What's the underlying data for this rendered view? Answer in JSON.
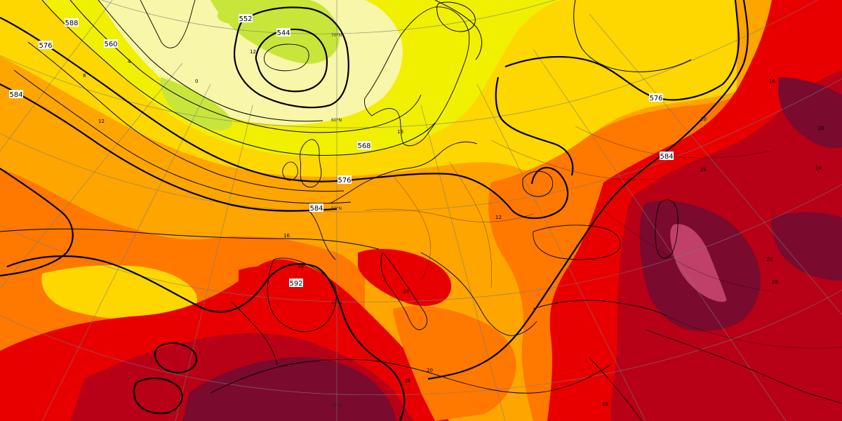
{
  "map": {
    "fill_palette": {
      "very_cold": "#f8f6a8",
      "cold": "#c8e63a",
      "cool": "#f0f000",
      "mild": "#ffd700",
      "warm": "#ffa500",
      "hot": "#ff7800",
      "very_hot": "#e80000",
      "extreme": "#b80016",
      "extreme2": "#7a0a2e",
      "extreme3": "#c0406a"
    },
    "contour_color": "#000000",
    "coast_color": "#000000",
    "geopotential_labels": [
      "588",
      "576",
      "584",
      "560",
      "552",
      "544",
      "568",
      "576",
      "584",
      "576",
      "584",
      "592"
    ],
    "temperature_labels": [
      "8",
      "4",
      "0",
      "12",
      "16",
      "20",
      "24",
      "28",
      "20",
      "16",
      "12",
      "20",
      "28",
      "16",
      "20",
      "24",
      "28",
      "28",
      "20",
      "12"
    ],
    "latitude_labels": [
      "70°N",
      "60°N",
      "50°N",
      "40°N",
      "30°N"
    ]
  }
}
